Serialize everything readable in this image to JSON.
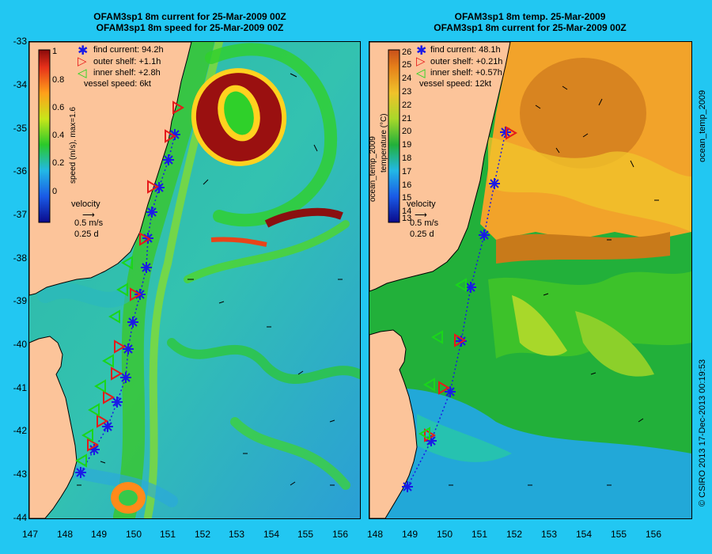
{
  "left_panel": {
    "title_line1": "OFAM3sp1 8m current for 25-Mar-2009 00Z",
    "title_line2": "OFAM3sp1 8m speed for 25-Mar-2009 00Z",
    "legend": {
      "find_current": "find current: 94.2h",
      "outer_shelf": "outer shelf: +1.1h",
      "inner_shelf": "inner shelf: +2.8h",
      "vessel_speed": "vessel speed: 6kt"
    },
    "colorbar_label": "speed (m/s), max=1.6",
    "colorbar_ticks": [
      "1",
      "0.8",
      "0.6",
      "0.4",
      "0.2",
      "0"
    ],
    "velocity_key": {
      "title": "velocity",
      "speed": "0.5 m/s",
      "time": "0.25 d"
    }
  },
  "right_panel": {
    "title_line1": "OFAM3sp1 8m temp. 25-Mar-2009",
    "title_line2": "OFAM3sp1 8m current for 25-Mar-2009 00Z",
    "legend": {
      "find_current": "find current: 48.1h",
      "outer_shelf": "outer shelf: +0.21h",
      "inner_shelf": "inner shelf: +0.57h",
      "vessel_speed": "vessel speed: 12kt"
    },
    "colorbar_label": "temperature (°C)",
    "side_label": "ocean_temp_2009",
    "colorbar_ticks": [
      "26",
      "25",
      "24",
      "23",
      "22",
      "21",
      "20",
      "19",
      "18",
      "17",
      "16",
      "15",
      "14",
      "13"
    ],
    "velocity_key": {
      "title": "velocity",
      "speed": "0.5 m/s",
      "time": "0.25 d"
    }
  },
  "y_axis_ticks": [
    "-33",
    "-34",
    "-35",
    "-36",
    "-37",
    "-38",
    "-39",
    "-40",
    "-41",
    "-42",
    "-43",
    "-44"
  ],
  "x_axis_ticks_left": [
    "147",
    "148",
    "149",
    "150",
    "151",
    "152",
    "153",
    "154",
    "155",
    "156"
  ],
  "x_axis_ticks_right": [
    "148",
    "149",
    "150",
    "151",
    "152",
    "153",
    "154",
    "155",
    "156"
  ],
  "side_label": "ocean_temp_2009",
  "copyright": "© CSIRO 2013   17-Dec-2013 00:19:53",
  "colors": {
    "background": "#22c7f2",
    "land": "#fcc49a",
    "find_current_marker": "#1a1ae6",
    "outer_shelf_marker": "#e61a1a",
    "inner_shelf_marker": "#1ad61a"
  }
}
